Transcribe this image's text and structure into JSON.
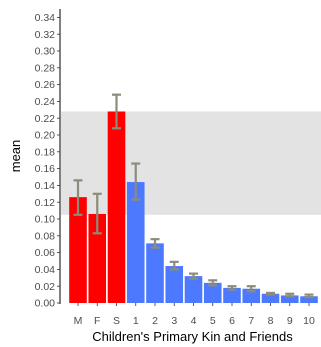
{
  "chart_data": {
    "type": "bar",
    "xlabel": "Children's Primary Kin and Friends",
    "ylabel": "mean",
    "ylim": [
      0,
      0.35
    ],
    "yticks": [
      0.0,
      0.02,
      0.04,
      0.06,
      0.08,
      0.1,
      0.12,
      0.14,
      0.16,
      0.18,
      0.2,
      0.22,
      0.24,
      0.26,
      0.28,
      0.3,
      0.32,
      0.34
    ],
    "categories": [
      "M",
      "F",
      "S",
      "1",
      "2",
      "3",
      "4",
      "5",
      "6",
      "7",
      "8",
      "9",
      "10"
    ],
    "values": [
      0.126,
      0.106,
      0.228,
      0.144,
      0.071,
      0.044,
      0.032,
      0.024,
      0.018,
      0.017,
      0.011,
      0.009,
      0.008
    ],
    "error_low": [
      0.105,
      0.083,
      0.208,
      0.123,
      0.066,
      0.04,
      0.029,
      0.021,
      0.016,
      0.014,
      0.01,
      0.008,
      0.007
    ],
    "error_high": [
      0.146,
      0.13,
      0.248,
      0.166,
      0.076,
      0.049,
      0.035,
      0.027,
      0.02,
      0.02,
      0.012,
      0.011,
      0.01
    ],
    "bar_colors": [
      "#ff0000",
      "#ff0000",
      "#ff0000",
      "#4d79ff",
      "#4d79ff",
      "#4d79ff",
      "#4d79ff",
      "#4d79ff",
      "#4d79ff",
      "#4d79ff",
      "#4d79ff",
      "#4d79ff",
      "#4d79ff"
    ],
    "error_bar_color": "#8c8c7a",
    "band": {
      "from": 0.105,
      "to": 0.228,
      "color": "#d9d9d9"
    },
    "grid": false
  }
}
